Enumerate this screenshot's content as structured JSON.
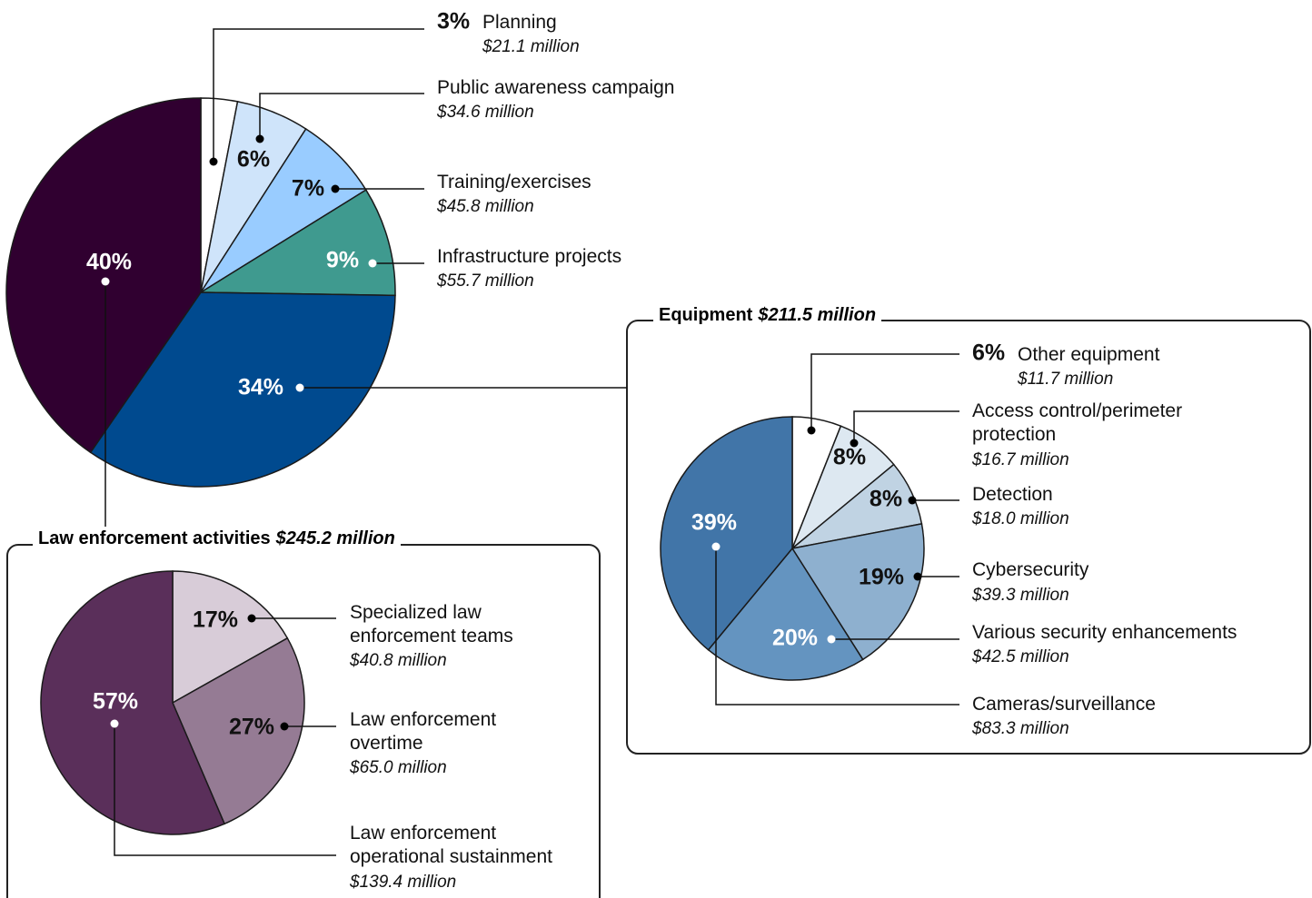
{
  "chart_data": [
    {
      "type": "pie",
      "categories": [
        "Planning",
        "Public awareness campaign",
        "Training/exercises",
        "Infrastructure projects",
        null,
        null
      ],
      "values": [
        3,
        6,
        7,
        9,
        34,
        40
      ],
      "value_labels": [
        "3%",
        "6%",
        "7%",
        "9%",
        "34%",
        "40%"
      ],
      "amounts": [
        "$21.1 million",
        "$34.6 million",
        "$45.8 million",
        "$55.7 million",
        null,
        null
      ],
      "colors": [
        "#ffffff",
        "#cfe4fa",
        "#99ccff",
        "#3f9a8f",
        "#004a8f",
        "#300030"
      ]
    },
    {
      "type": "pie",
      "title": "Equipment",
      "subtitle": "$211.5 million",
      "categories": [
        "Other equipment",
        "Access control/perimeter protection",
        "Detection",
        "Cybersecurity",
        "Various security enhancements",
        "Cameras/surveillance"
      ],
      "values": [
        6,
        8,
        8,
        19,
        20,
        39
      ],
      "value_labels": [
        "6%",
        "8%",
        "8%",
        "19%",
        "20%",
        "39%"
      ],
      "amounts": [
        "$11.7 million",
        "$16.7 million",
        "$18.0 million",
        "$39.3 million",
        "$42.5 million",
        "$83.3 million"
      ],
      "colors": [
        "#ffffff",
        "#dde8f1",
        "#c0d3e3",
        "#8eb0cf",
        "#6494c0",
        "#4175a8"
      ]
    },
    {
      "type": "pie",
      "title": "Law enforcement activities",
      "subtitle": "$245.2 million",
      "categories": [
        "Specialized law enforcement teams",
        "Law enforcement overtime",
        "Law enforcement operational sustainment"
      ],
      "values": [
        17,
        27,
        57
      ],
      "value_labels": [
        "17%",
        "27%",
        "57%"
      ],
      "amounts": [
        "$40.8 million",
        "$65.0 million",
        "$139.4 million"
      ],
      "colors": [
        "#d8ccd8",
        "#957b94",
        "#5a2f5a"
      ]
    }
  ]
}
